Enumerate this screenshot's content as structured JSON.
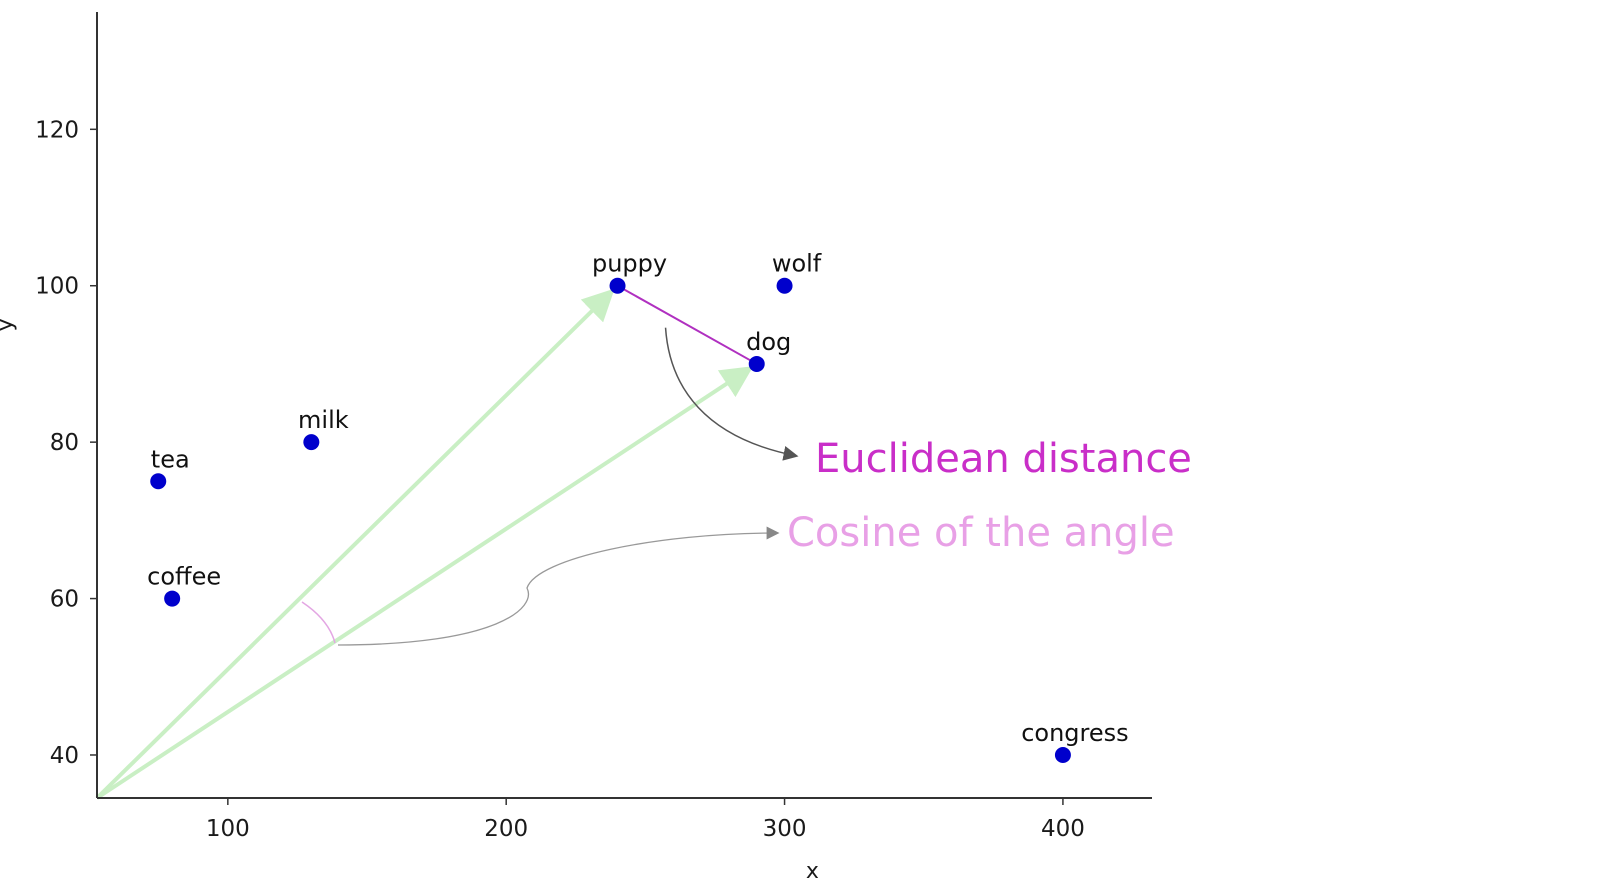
{
  "chart_data": {
    "type": "scatter",
    "xlabel": "x",
    "ylabel": "y",
    "xlim": [
      53,
      432
    ],
    "ylim": [
      34.5,
      135
    ],
    "xticks": [
      100,
      200,
      300,
      400
    ],
    "yticks": [
      40,
      60,
      80,
      100,
      120
    ],
    "grid": false,
    "point_color": "#0000cc",
    "points": [
      {
        "label": "puppy",
        "x": 240,
        "y": 100
      },
      {
        "label": "wolf",
        "x": 300,
        "y": 100
      },
      {
        "label": "dog",
        "x": 290,
        "y": 90
      },
      {
        "label": "milk",
        "x": 130,
        "y": 80
      },
      {
        "label": "tea",
        "x": 75,
        "y": 75
      },
      {
        "label": "coffee",
        "x": 80,
        "y": 60
      },
      {
        "label": "congress",
        "x": 400,
        "y": 40
      }
    ],
    "vectors": [
      {
        "from": [
          53,
          34.5
        ],
        "to": "puppy",
        "color": "#c9efc4"
      },
      {
        "from": [
          53,
          34.5
        ],
        "to": "dog",
        "color": "#c9efc4"
      }
    ],
    "distance_line": {
      "from": "puppy",
      "to": "dog",
      "color": "#b030c0"
    },
    "annotations": [
      {
        "text": "Euclidean distance",
        "color": "#c92ec8"
      },
      {
        "text": "Cosine of the angle",
        "color": "#e8a0e6"
      }
    ]
  }
}
